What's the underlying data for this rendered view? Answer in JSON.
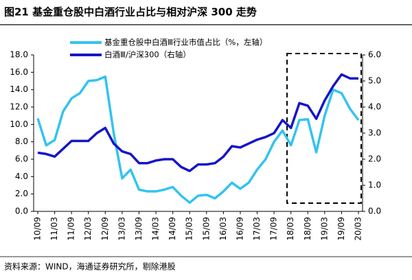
{
  "chart_data": {
    "type": "line",
    "title": "图21 基金重仓股中白酒行业占比与相对沪深 300 走势",
    "source": "资料来源：WIND，海通证券研究所，剔除港股",
    "categories": [
      "10/09",
      null,
      "11/03",
      null,
      "11/09",
      null,
      "12/03",
      null,
      "12/09",
      null,
      "13/03",
      null,
      "13/09",
      null,
      "14/03",
      null,
      "14/09",
      null,
      "15/03",
      null,
      "15/09",
      null,
      "16/03",
      null,
      "16/09",
      null,
      "17/03",
      null,
      "17/09",
      null,
      "18/03",
      null,
      "18/09",
      null,
      "19/03",
      null,
      "19/09",
      null,
      "20/03"
    ],
    "series": [
      {
        "name": "基金重仓股中白酒Ⅲ行业市值占比（%，左轴）",
        "color": "#33c3f0",
        "axis": "y",
        "values": [
          10.7,
          7.6,
          8.2,
          11.5,
          13.0,
          13.6,
          15.0,
          15.1,
          15.5,
          9.0,
          3.8,
          4.8,
          2.5,
          2.3,
          2.3,
          2.5,
          2.8,
          1.8,
          1.0,
          1.8,
          1.9,
          1.5,
          2.3,
          3.3,
          2.6,
          3.3,
          4.8,
          6.0,
          8.0,
          9.3,
          7.6,
          10.5,
          10.6,
          6.8,
          11.0,
          14.0,
          13.6,
          11.8,
          10.5
        ]
      },
      {
        "name": "白酒Ⅲ/沪深300（右轴）",
        "color": "#1515c8",
        "axis": "y2",
        "values": [
          2.25,
          2.2,
          2.1,
          2.4,
          2.7,
          2.7,
          2.7,
          3.0,
          3.2,
          2.6,
          2.3,
          2.2,
          1.85,
          1.85,
          1.95,
          2.0,
          2.0,
          1.7,
          1.55,
          1.8,
          1.8,
          1.85,
          2.1,
          2.5,
          2.45,
          2.6,
          2.75,
          2.85,
          3.0,
          3.5,
          3.2,
          4.15,
          4.05,
          3.55,
          4.25,
          4.8,
          5.25,
          5.1,
          5.1
        ]
      }
    ],
    "ylim": [
      0,
      18
    ],
    "yticks": [
      {
        "value": 0,
        "label": "0.0"
      },
      {
        "value": 2,
        "label": "2.0"
      },
      {
        "value": 4,
        "label": "4.0"
      },
      {
        "value": 6,
        "label": "6.0"
      },
      {
        "value": 8,
        "label": "8.0"
      },
      {
        "value": 10,
        "label": "10.0"
      },
      {
        "value": 12,
        "label": "12.0"
      },
      {
        "value": 14,
        "label": "14.0"
      },
      {
        "value": 16,
        "label": "16.0"
      },
      {
        "value": 18,
        "label": "18.0"
      }
    ],
    "y2lim": [
      0,
      6
    ],
    "y2ticks": [
      {
        "value": 0,
        "label": "0.0"
      },
      {
        "value": 1,
        "label": "1.0"
      },
      {
        "value": 2,
        "label": "2.0"
      },
      {
        "value": 3,
        "label": "3.0"
      },
      {
        "value": 4,
        "label": "4.0"
      },
      {
        "value": 5,
        "label": "5.0"
      },
      {
        "value": 6,
        "label": "6.0"
      }
    ],
    "grid": false
  }
}
